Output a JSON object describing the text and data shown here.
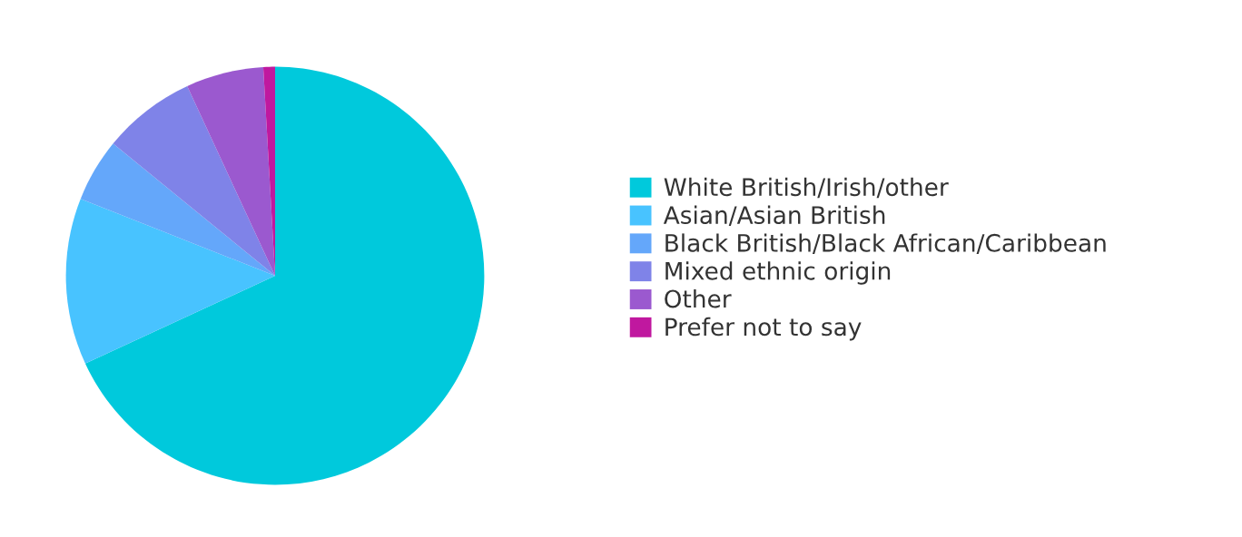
{
  "chart_data": {
    "type": "pie",
    "categories": [
      "White British/Irish/other",
      "Asian/Asian British",
      "Black British/Black African/Caribbean",
      "Mixed ethnic origin",
      "Other",
      "Prefer not to say"
    ],
    "values": [
      68.1,
      12.9,
      4.9,
      7.2,
      6.0,
      0.9
    ],
    "colors": [
      "#00c9dc",
      "#48c3ff",
      "#64a7fa",
      "#7f83e8",
      "#9b59cf",
      "#c0189f"
    ],
    "legend": "right"
  }
}
